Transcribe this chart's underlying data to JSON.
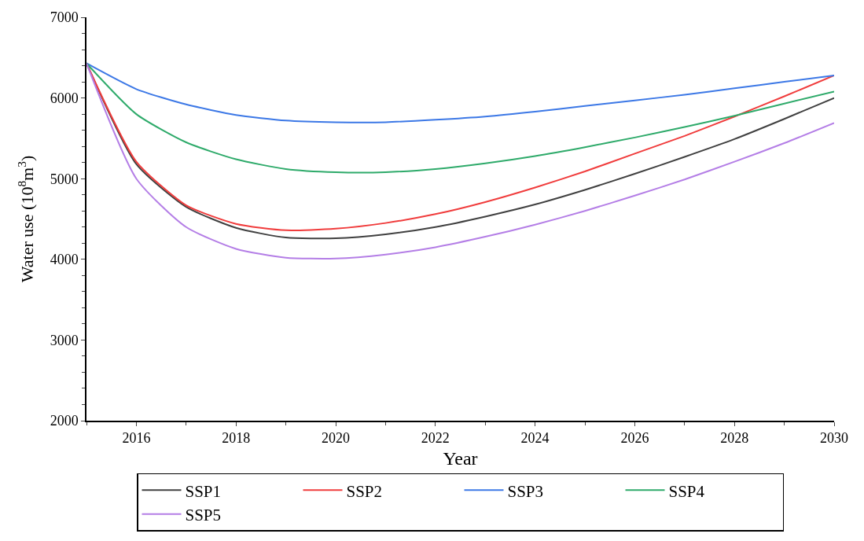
{
  "chart_data": {
    "type": "line",
    "xlabel": "Year",
    "ylabel": "Water use (10$^{8}$m$^{3}$)",
    "x": [
      2015,
      2016,
      2017,
      2018,
      2019,
      2020,
      2021,
      2022,
      2023,
      2024,
      2025,
      2026,
      2027,
      2028,
      2029,
      2030
    ],
    "xlim": [
      2015,
      2030
    ],
    "xticks": [
      2016,
      2018,
      2020,
      2022,
      2024,
      2026,
      2028,
      2030
    ],
    "ylim": [
      2000,
      7000
    ],
    "yticks": [
      2000,
      3000,
      4000,
      5000,
      6000,
      7000
    ],
    "legend": "bottom",
    "marker": "none",
    "line_style": "solid",
    "series": [
      {
        "name": "SSP1",
        "color": "#404040",
        "values": [
          6430,
          5180,
          4650,
          4390,
          4270,
          4260,
          4310,
          4400,
          4530,
          4680,
          4860,
          5060,
          5270,
          5490,
          5740,
          6000
        ]
      },
      {
        "name": "SSP2",
        "color": "#f03c3c",
        "values": [
          6430,
          5210,
          4670,
          4440,
          4360,
          4380,
          4450,
          4560,
          4710,
          4890,
          5090,
          5310,
          5530,
          5770,
          6020,
          6280
        ]
      },
      {
        "name": "SSP3",
        "color": "#3c78e6",
        "values": [
          6430,
          6110,
          5920,
          5790,
          5720,
          5700,
          5700,
          5730,
          5770,
          5830,
          5900,
          5970,
          6040,
          6120,
          6200,
          6280
        ]
      },
      {
        "name": "SSP4",
        "color": "#2eaa6a",
        "values": [
          6430,
          5800,
          5450,
          5240,
          5120,
          5080,
          5080,
          5120,
          5190,
          5280,
          5390,
          5510,
          5640,
          5780,
          5930,
          6080
        ]
      },
      {
        "name": "SSP5",
        "color": "#b47ee6",
        "values": [
          6430,
          5000,
          4400,
          4130,
          4020,
          4010,
          4060,
          4150,
          4280,
          4430,
          4600,
          4790,
          4990,
          5210,
          5440,
          5690
        ]
      }
    ]
  }
}
